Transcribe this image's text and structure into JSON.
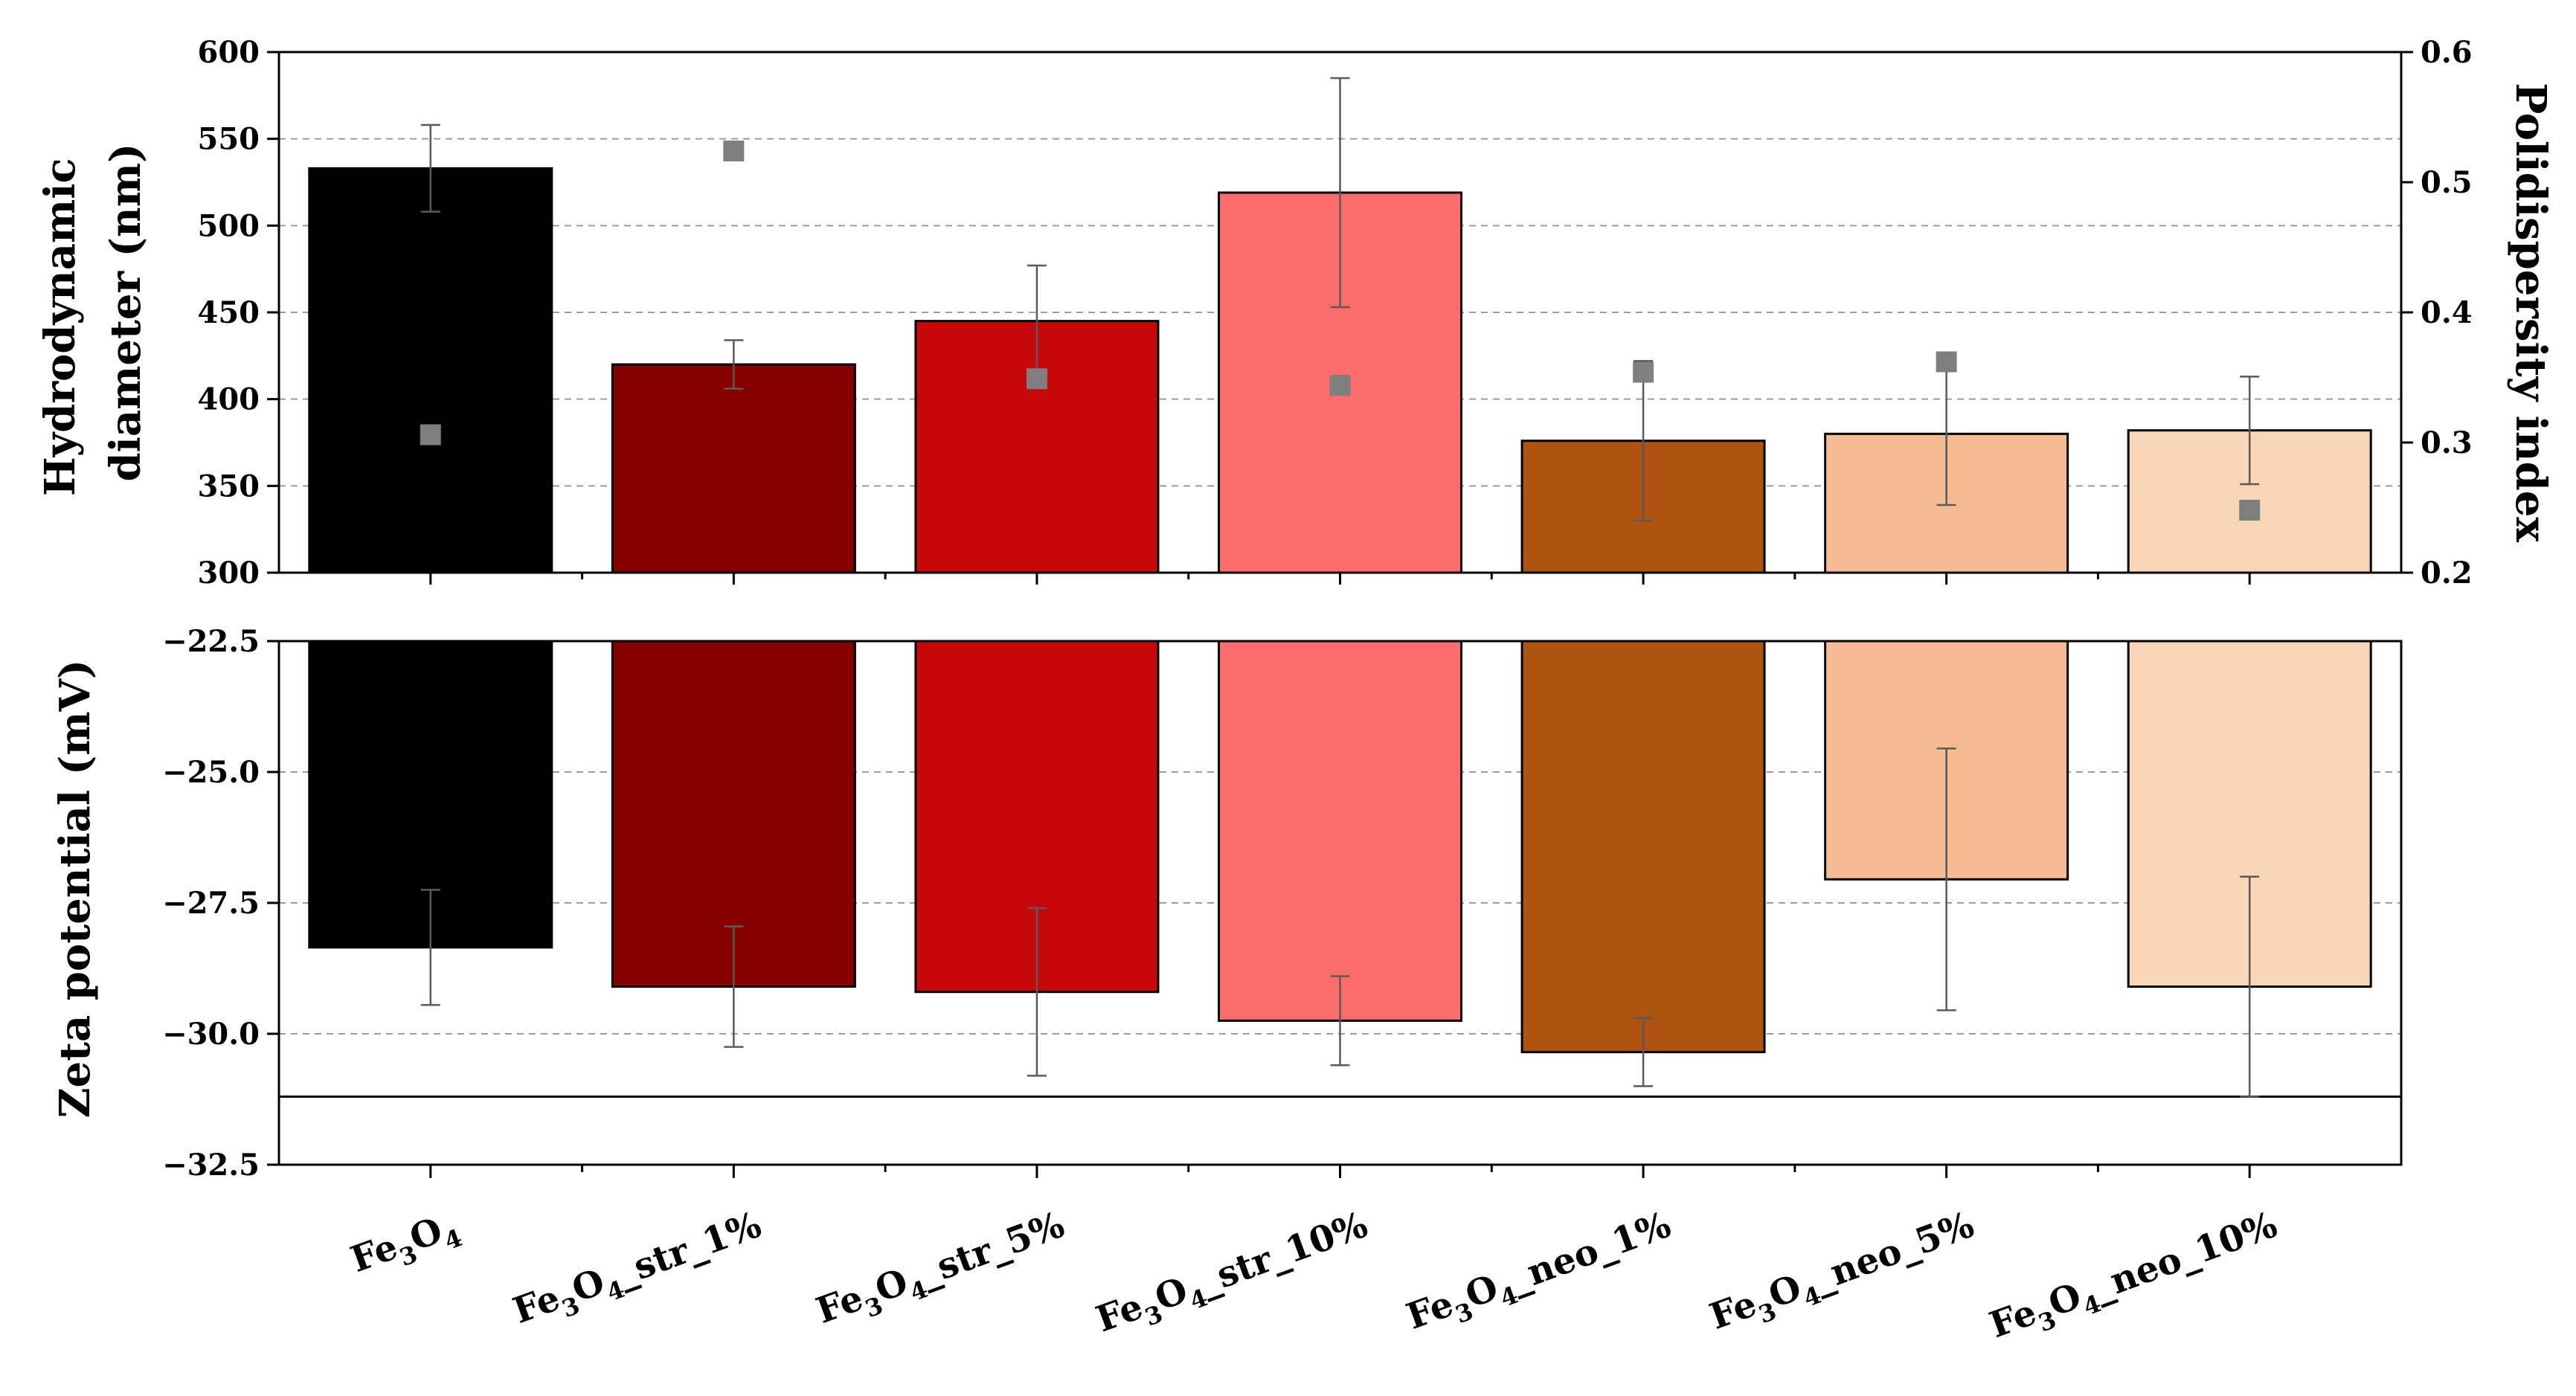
{
  "chart_data": {
    "type": "bar",
    "categories": [
      {
        "base": "Fe",
        "sub1": "3",
        "mid": "O",
        "sub2": "4",
        "suffix": ""
      },
      {
        "base": "Fe",
        "sub1": "3",
        "mid": "O",
        "sub2": "4",
        "suffix": "_str_1%"
      },
      {
        "base": "Fe",
        "sub1": "3",
        "mid": "O",
        "sub2": "4",
        "suffix": "_str_5%"
      },
      {
        "base": "Fe",
        "sub1": "3",
        "mid": "O",
        "sub2": "4",
        "suffix": "_str_10%"
      },
      {
        "base": "Fe",
        "sub1": "3",
        "mid": "O",
        "sub2": "4",
        "suffix": "_neo_1%"
      },
      {
        "base": "Fe",
        "sub1": "3",
        "mid": "O",
        "sub2": "4",
        "suffix": "_neo_5%"
      },
      {
        "base": "Fe",
        "sub1": "3",
        "mid": "O",
        "sub2": "4",
        "suffix": "_neo_10%"
      }
    ],
    "colors": [
      "#000000",
      "#850000",
      "#c80808",
      "#fb6d6d",
      "#ad520f",
      "#f5bb92",
      "#f8d6b8"
    ],
    "top_panel": {
      "ylabel_line1": "Hydrodynamic",
      "ylabel_line2": "diameter (nm)",
      "y2label": "Polidispersity index",
      "ylim": [
        300,
        600
      ],
      "yticks": [
        "300",
        "350",
        "400",
        "450",
        "500",
        "550",
        "600"
      ],
      "y2lim": [
        0.2,
        0.6
      ],
      "y2ticks": [
        "0.2",
        "0.3",
        "0.4",
        "0.5",
        "0.6"
      ],
      "diameter": [
        533,
        420,
        445,
        519,
        376,
        380,
        382
      ],
      "diameter_err": [
        25,
        14,
        32,
        66,
        46,
        41,
        31
      ],
      "pdi": [
        0.306,
        0.524,
        0.349,
        0.344,
        0.354,
        0.362,
        0.248
      ]
    },
    "bottom_panel": {
      "ylabel": "Zeta potential (mV)",
      "ylim": [
        -32.5,
        -22.5
      ],
      "yticks": [
        "−22.5",
        "−25.0",
        "−27.5",
        "−30.0",
        "−32.5"
      ],
      "zeta": [
        -28.35,
        -29.1,
        -29.2,
        -29.75,
        -30.35,
        -27.05,
        -29.1
      ],
      "zeta_err": [
        1.1,
        1.15,
        1.6,
        0.85,
        0.65,
        2.5,
        2.1
      ],
      "reference_line": -31.2
    }
  }
}
